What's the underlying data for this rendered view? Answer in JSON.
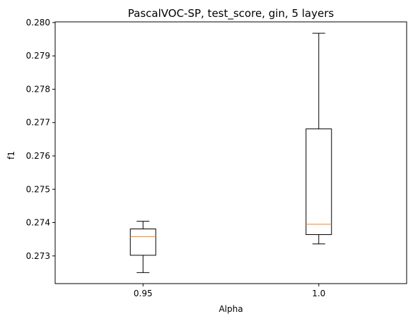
{
  "chart_data": {
    "type": "box",
    "title": "PascalVOC-SP, test_score, gin, 5 layers",
    "xlabel": "Alpha",
    "ylabel": "f1",
    "categories": [
      "0.95",
      "1.0"
    ],
    "boxes": [
      {
        "category": "0.95",
        "whislo": 0.2725,
        "q1": 0.27302,
        "med": 0.27358,
        "q3": 0.27381,
        "whishi": 0.27404
      },
      {
        "category": "1.0",
        "whislo": 0.27336,
        "q1": 0.27364,
        "med": 0.27395,
        "q3": 0.27681,
        "whishi": 0.27968
      }
    ],
    "ylim": [
      0.27217,
      0.28002
    ],
    "yticks": [
      0.273,
      0.274,
      0.275,
      0.276,
      0.277,
      0.278,
      0.279,
      0.28
    ],
    "ytick_labels": [
      "0.273",
      "0.274",
      "0.275",
      "0.276",
      "0.277",
      "0.278",
      "0.279",
      "0.280"
    ],
    "grid": false,
    "colors": {
      "box": "#000000",
      "median": "#ff7f0e"
    }
  }
}
